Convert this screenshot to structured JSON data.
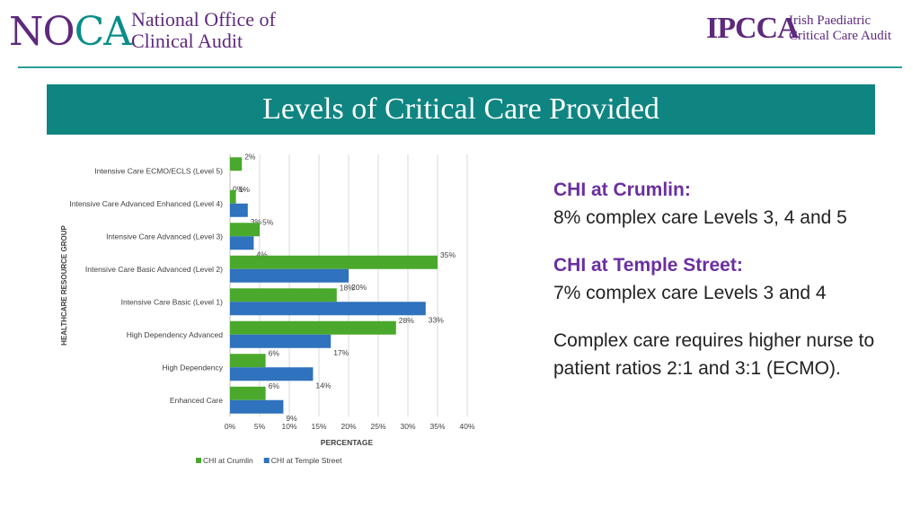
{
  "header": {
    "noca_mark_no": "NO",
    "noca_mark_ca": "CA",
    "noca_line1": "National Office of",
    "noca_line2": "Clinical Audit",
    "ipcca_mark": "IPCCA",
    "ipcca_line1": "Irish Paediatric",
    "ipcca_line2": "Critical Care Audit"
  },
  "title": "Levels of Critical Care Provided",
  "colors": {
    "crumlin": "#4aa82c",
    "temple_street": "#2f72bd",
    "accent": "#0f8582",
    "heading": "#6b2fa0"
  },
  "chart_data": {
    "type": "bar",
    "orientation": "horizontal",
    "categories": [
      "Intensive Care ECMO/ECLS (Level 5)",
      "Intensive Care Advanced Enhanced (Level 4)",
      "Intensive Care Advanced (Level 3)",
      "Intensive Care Basic Advanced (Level 2)",
      "Intensive Care Basic (Level 1)",
      "High Dependency Advanced",
      "High Dependency",
      "Enhanced Care"
    ],
    "series": [
      {
        "name": "CHI at Crumlin",
        "values": [
          2,
          1,
          5,
          35,
          18,
          28,
          6,
          6
        ]
      },
      {
        "name": "CHI at Temple Street",
        "values": [
          0,
          3,
          4,
          20,
          33,
          17,
          14,
          9
        ]
      }
    ],
    "xlabel": "PERCENTAGE",
    "ylabel": "HEALTHCARE RESOURCE GROUP",
    "xlim": [
      0,
      40
    ],
    "xticks": [
      "0%",
      "5%",
      "10%",
      "15%",
      "20%",
      "25%",
      "30%",
      "35%",
      "40%"
    ],
    "value_suffix": "%",
    "legend_position": "bottom-left",
    "grid": true
  },
  "notes": [
    {
      "heading": "CHI at Crumlin:",
      "body": "8% complex care Levels 3, 4 and 5"
    },
    {
      "heading": "CHI at Temple Street:",
      "body": "7% complex care Levels 3 and 4"
    },
    {
      "heading": "",
      "body": "Complex care requires higher nurse to patient ratios 2:1 and 3:1 (ECMO)."
    }
  ]
}
